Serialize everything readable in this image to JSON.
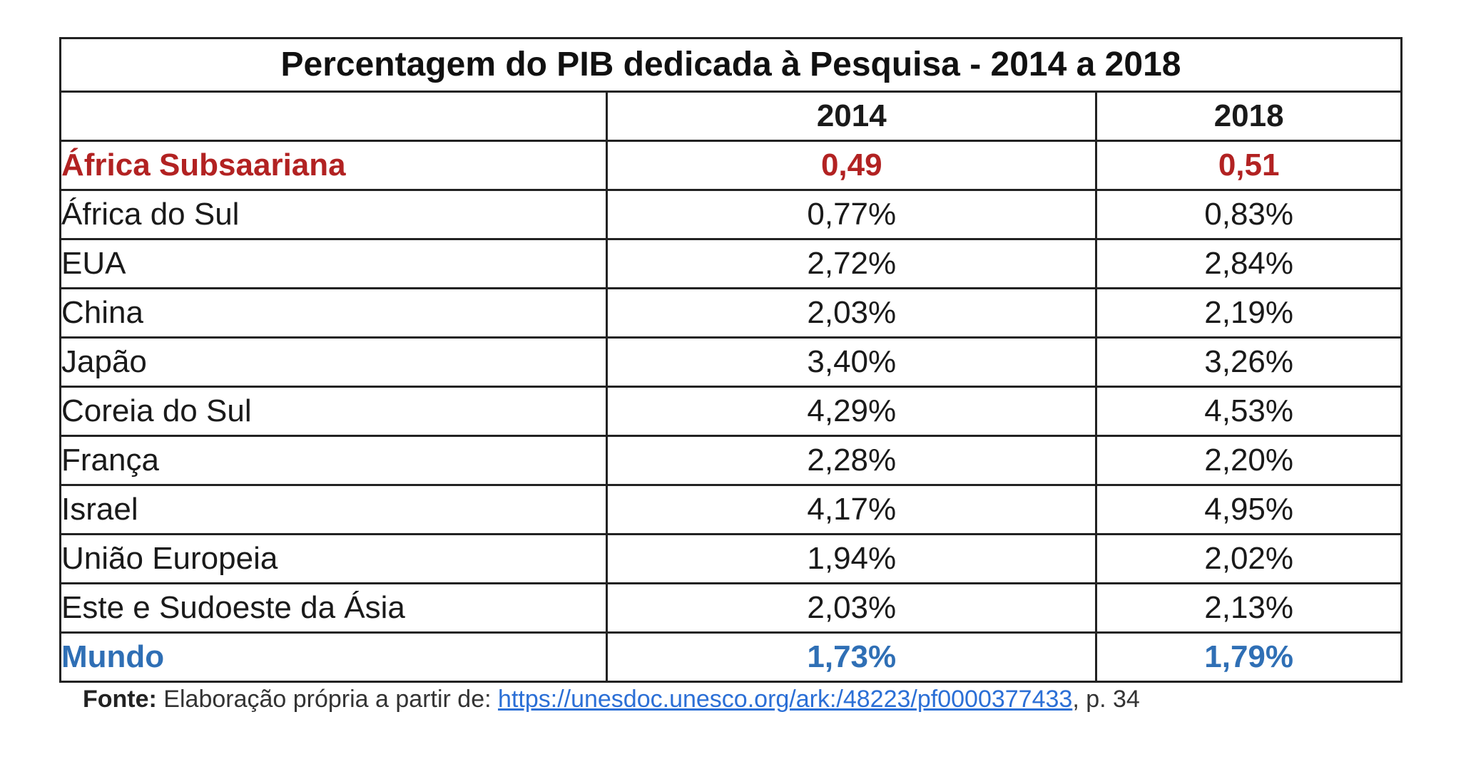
{
  "table": {
    "title": "Percentagem do PIB dedicada à Pesquisa - 2014 a 2018",
    "header": [
      "",
      "2014",
      "2018"
    ],
    "rows": [
      {
        "label": "África Subsaariana",
        "v2014": "0,49",
        "v2018": "0,51",
        "highlight": "red"
      },
      {
        "label": "África do Sul",
        "v2014": "0,77%",
        "v2018": "0,83%"
      },
      {
        "label": "EUA",
        "v2014": "2,72%",
        "v2018": "2,84%"
      },
      {
        "label": "China",
        "v2014": "2,03%",
        "v2018": "2,19%"
      },
      {
        "label": "Japão",
        "v2014": "3,40%",
        "v2018": "3,26%"
      },
      {
        "label": "Coreia do Sul",
        "v2014": "4,29%",
        "v2018": "4,53%"
      },
      {
        "label": "França",
        "v2014": "2,28%",
        "v2018": "2,20%"
      },
      {
        "label": "Israel",
        "v2014": "4,17%",
        "v2018": "4,95%"
      },
      {
        "label": "União Europeia",
        "v2014": "1,94%",
        "v2018": "2,02%"
      },
      {
        "label": "Este e Sudoeste da Ásia",
        "v2014": "2,03%",
        "v2018": "2,13%"
      },
      {
        "label": "Mundo",
        "v2014": "1,73%",
        "v2018": "1,79%",
        "highlight": "blue"
      }
    ]
  },
  "source": {
    "prefix": "Fonte:",
    "text": " Elaboração própria a partir de: ",
    "link": "https://unesdoc.unesco.org/ark:/48223/pf0000377433",
    "suffix": ", p. 34"
  },
  "colors": {
    "highlight_red": "#b22222",
    "highlight_blue": "#2f6fb5",
    "link": "#2b6fd6"
  }
}
